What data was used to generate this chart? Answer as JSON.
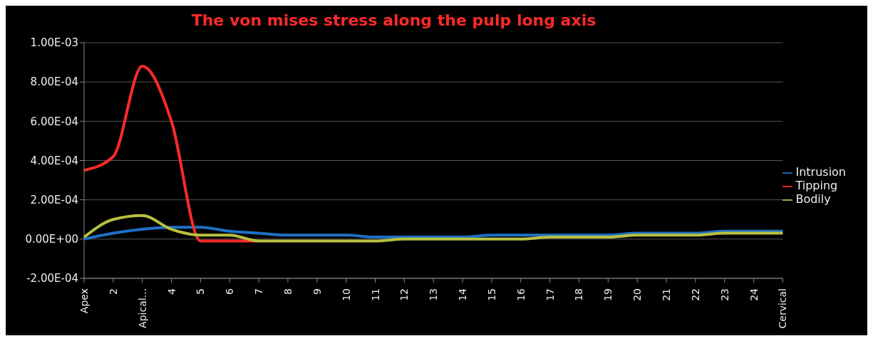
{
  "chart_data": {
    "type": "line",
    "title": "The von mises stress along the pulp long axis",
    "categories": [
      "Apex",
      "2",
      "Apical...",
      "4",
      "5",
      "6",
      "7",
      "8",
      "9",
      "10",
      "11",
      "12",
      "13",
      "14",
      "15",
      "16",
      "17",
      "18",
      "19",
      "20",
      "21",
      "22",
      "23",
      "24",
      "Cervical"
    ],
    "series": [
      {
        "name": "Intrusion",
        "color": "#1f6fc4",
        "values": [
          0,
          3e-05,
          5e-05,
          6e-05,
          6e-05,
          4e-05,
          3e-05,
          2e-05,
          2e-05,
          2e-05,
          1e-05,
          1e-05,
          1e-05,
          1e-05,
          2e-05,
          2e-05,
          2e-05,
          2e-05,
          2e-05,
          3e-05,
          3e-05,
          3e-05,
          4e-05,
          4e-05,
          4e-05
        ]
      },
      {
        "name": "Tipping",
        "color": "#ff2a2a",
        "values": [
          0.00035,
          0.00042,
          0.00088,
          0.0006,
          -1e-05,
          -1e-05,
          -1e-05,
          null,
          null,
          null,
          null,
          null,
          null,
          null,
          null,
          null,
          null,
          null,
          null,
          null,
          null,
          null,
          null,
          null,
          null
        ]
      },
      {
        "name": "Bodily",
        "color": "#b8c040",
        "values": [
          1e-05,
          0.0001,
          0.00012,
          5e-05,
          2e-05,
          2e-05,
          -1e-05,
          -1e-05,
          -1e-05,
          -1e-05,
          -1e-05,
          0,
          0,
          0,
          0,
          0,
          1e-05,
          1e-05,
          1e-05,
          2e-05,
          2e-05,
          2e-05,
          3e-05,
          3e-05,
          3e-05
        ]
      }
    ],
    "ylim": [
      -0.0002,
      0.001
    ],
    "yticks": [
      {
        "value": -0.0002,
        "label": "-2.00E-04"
      },
      {
        "value": 0,
        "label": "0.00E+00"
      },
      {
        "value": 0.0002,
        "label": "2.00E-04"
      },
      {
        "value": 0.0004,
        "label": "4.00E-04"
      },
      {
        "value": 0.0006,
        "label": "6.00E-04"
      },
      {
        "value": 0.0008,
        "label": "8.00E-04"
      },
      {
        "value": 0.001,
        "label": "1.00E-03"
      }
    ],
    "grid": "y",
    "legend": "right",
    "marker": "none",
    "line_style": "solid"
  }
}
